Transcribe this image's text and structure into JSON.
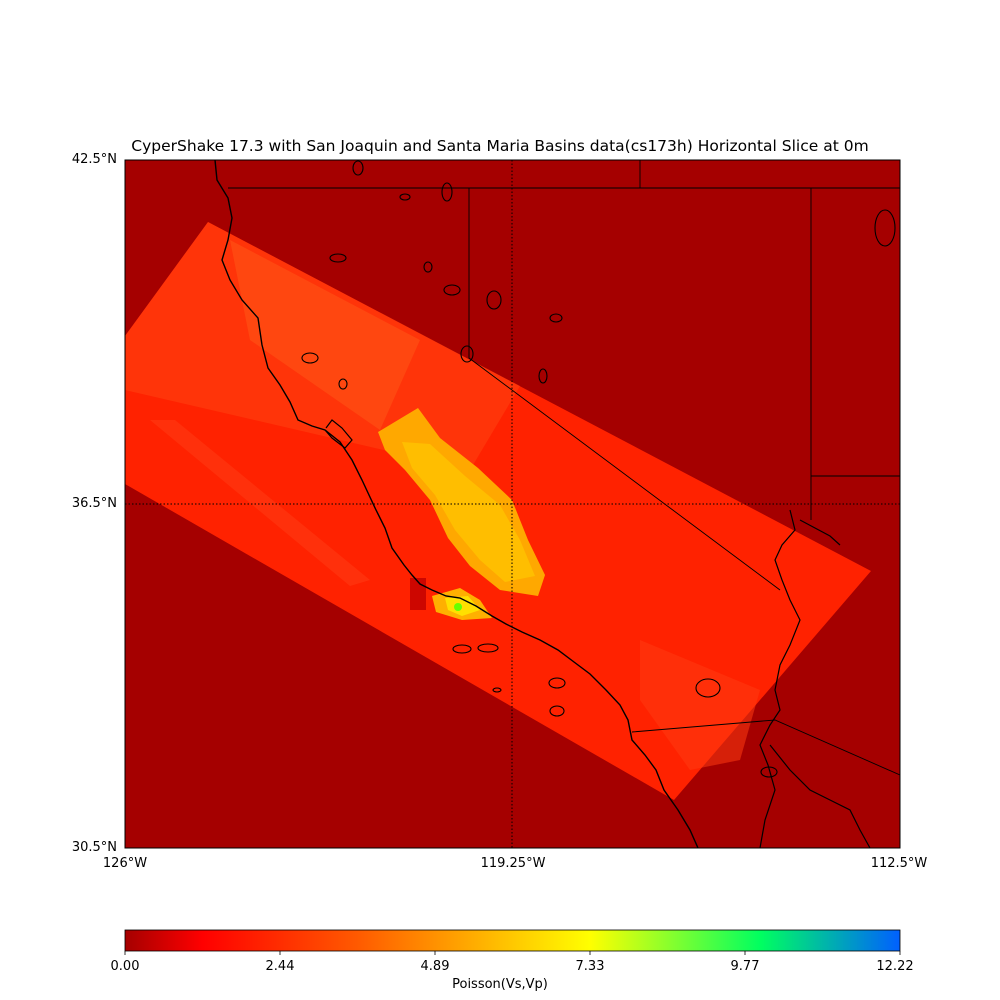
{
  "title": "CyperShake 17.3 with San Joaquin and Santa Maria Basins data(cs173h) Horizontal Slice at 0m",
  "map": {
    "lat_labels": [
      "42.5°N",
      "36.5°N",
      "30.5°N"
    ],
    "lon_labels": [
      "126°W",
      "119.25°W",
      "112.5°W"
    ],
    "lat_range": [
      30.5,
      42.5
    ],
    "lon_range": [
      -126,
      -112.5
    ],
    "colors": {
      "background": "#a50000",
      "model_region": "#ff2200",
      "model_region_light": "#ff4a10",
      "basin": "#ffa800",
      "basin_core": "#ffc000",
      "basin_south": "#ffcc00",
      "hotspot": "#66ff00",
      "coastline": "#000000"
    }
  },
  "colorbar": {
    "label": "Poisson(Vs,Vp)",
    "ticks": [
      "0.00",
      "2.44",
      "4.89",
      "7.33",
      "9.77",
      "12.22"
    ],
    "range": [
      0.0,
      12.22
    ],
    "colormap": [
      "#a50000",
      "#ff0000",
      "#ff8000",
      "#ffff00",
      "#00ff60",
      "#0060ff"
    ]
  }
}
